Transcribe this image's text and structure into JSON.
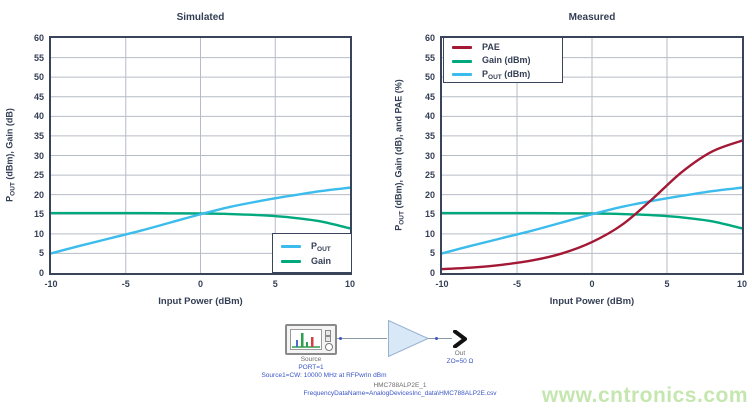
{
  "colors": {
    "axis_frame": "#39435a",
    "axis_text": "#343e54",
    "gridline": "#b6bcc6",
    "cyan": "#3bbced",
    "green": "#00a87e",
    "crimson": "#a31835",
    "schematic_blue": "#3a55c4",
    "watermark_green": "#c5e6ae"
  },
  "chart_data": [
    {
      "type": "line",
      "title": "Simulated",
      "xlabel": "Input Power (dBm)",
      "ylabel": "POUT (dBm), Gain (dB)",
      "ylabel_parts": {
        "pre": "P",
        "sub": "OUT",
        "post": " (dBm), Gain (dB)"
      },
      "xlim": [
        -10,
        10
      ],
      "ylim": [
        0,
        60
      ],
      "xticks": [
        -10,
        -5,
        0,
        5,
        10
      ],
      "yticks": [
        0,
        5,
        10,
        15,
        20,
        25,
        30,
        35,
        40,
        45,
        50,
        55,
        60
      ],
      "grid": true,
      "legend_position": "bottom-right",
      "x": [
        -10,
        -8,
        -6,
        -4,
        -2,
        0,
        2,
        4,
        6,
        8,
        10
      ],
      "series": [
        {
          "name": "POUT",
          "label_pre": "P",
          "label_sub": "OUT",
          "label_post": "",
          "color": "#3bbced",
          "values": [
            5.0,
            7.0,
            8.9,
            10.8,
            12.9,
            15.0,
            16.9,
            18.4,
            19.7,
            20.9,
            21.8
          ]
        },
        {
          "name": "Gain",
          "label_pre": "Gain",
          "label_sub": "",
          "label_post": "",
          "color": "#00a87e",
          "values": [
            15.3,
            15.3,
            15.3,
            15.3,
            15.25,
            15.2,
            15.05,
            14.75,
            14.2,
            13.2,
            11.4
          ]
        }
      ],
      "draw_order": [
        1,
        0
      ]
    },
    {
      "type": "line",
      "title": "Measured",
      "xlabel": "Input Power (dBm)",
      "ylabel": "POUT (dBm), Gain (dB), and PAE (%)",
      "ylabel_parts": {
        "pre": "P",
        "sub": "OUT",
        "post": " (dBm), Gain (dB), and PAE (%)"
      },
      "xlim": [
        -10,
        10
      ],
      "ylim": [
        0,
        60
      ],
      "xticks": [
        -10,
        -5,
        0,
        5,
        10
      ],
      "yticks": [
        0,
        5,
        10,
        15,
        20,
        25,
        30,
        35,
        40,
        45,
        50,
        55,
        60
      ],
      "grid": true,
      "legend_position": "top-left",
      "x": [
        -10,
        -8,
        -6,
        -4,
        -2,
        0,
        2,
        4,
        6,
        8,
        10
      ],
      "series": [
        {
          "name": "PAE",
          "label_pre": "PAE",
          "label_sub": "",
          "label_post": "",
          "color": "#a31835",
          "values": [
            1.0,
            1.4,
            2.1,
            3.2,
            5.0,
            7.9,
            12.3,
            18.8,
            25.8,
            31.0,
            33.8
          ]
        },
        {
          "name": "Gain (dBm)",
          "label_pre": "Gain (dBm)",
          "label_sub": "",
          "label_post": "",
          "color": "#00a87e",
          "values": [
            15.3,
            15.3,
            15.3,
            15.3,
            15.25,
            15.2,
            15.05,
            14.75,
            14.2,
            13.2,
            11.4
          ]
        },
        {
          "name": "POUT (dBm)",
          "label_pre": "P",
          "label_sub": "OUT",
          "label_post": " (dBm)",
          "color": "#3bbced",
          "values": [
            5.0,
            7.0,
            8.9,
            10.8,
            12.9,
            15.0,
            16.9,
            18.4,
            19.7,
            20.9,
            21.8
          ]
        }
      ],
      "draw_order": [
        1,
        2,
        0
      ]
    }
  ],
  "schematic": {
    "source_label": "Source",
    "source_port": "PORT=1",
    "source_settings": "Source1=CW: 10000 MHz at RFPwrIn dBm",
    "out_label": "Out",
    "out_impedance": "ZO=50 Ω",
    "component_name": "HMC788ALP2E_1",
    "component_data": "FrequencyDataName=AnalogDevicesInc_data\\HMC788ALP2E.csv"
  },
  "page": {
    "watermark": "www.cntronics.com"
  }
}
